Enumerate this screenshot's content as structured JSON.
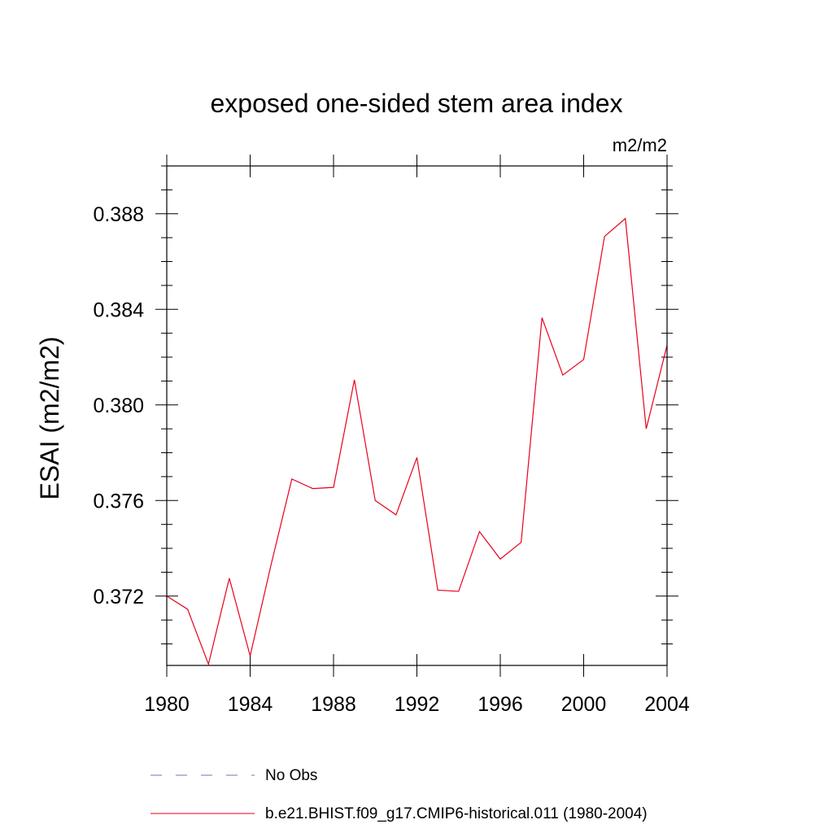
{
  "chart_data": {
    "type": "line",
    "title": "exposed one-sided stem area index",
    "units_label": "m2/m2",
    "ylabel": "ESAI  (m2/m2)",
    "xlabel": "",
    "xlim": [
      1980,
      2004
    ],
    "ylim": [
      0.3691,
      0.39
    ],
    "x_ticks": [
      1980,
      1984,
      1988,
      1992,
      1996,
      2000,
      2004
    ],
    "y_ticks": [
      0.372,
      0.376,
      0.38,
      0.384,
      0.388
    ],
    "y_tick_labels": [
      "0.372",
      "0.376",
      "0.380",
      "0.384",
      "0.388"
    ],
    "x_minor_step": 1,
    "y_minor_step": 0.001,
    "grid": false,
    "legend_position": "bottom",
    "series": [
      {
        "name": "No Obs",
        "color": "#7b6fb0",
        "dash": "dashed",
        "x": [],
        "values": []
      },
      {
        "name": "b.e21.BHIST.f09_g17.CMIP6-historical.011 (1980-2004)",
        "color": "#e8001c",
        "dash": "solid",
        "x": [
          1980,
          1981,
          1982,
          1983,
          1984,
          1985,
          1986,
          1987,
          1988,
          1989,
          1990,
          1991,
          1992,
          1993,
          1994,
          1995,
          1996,
          1997,
          1998,
          1999,
          2000,
          2001,
          2002,
          2003,
          2004
        ],
        "values": [
          0.372,
          0.37145,
          0.36915,
          0.37275,
          0.3695,
          0.3733,
          0.3769,
          0.3765,
          0.37655,
          0.38105,
          0.376,
          0.3754,
          0.3778,
          0.37225,
          0.3722,
          0.3747,
          0.37355,
          0.37425,
          0.38365,
          0.38125,
          0.3819,
          0.38705,
          0.3878,
          0.379,
          0.3825
        ]
      }
    ]
  }
}
